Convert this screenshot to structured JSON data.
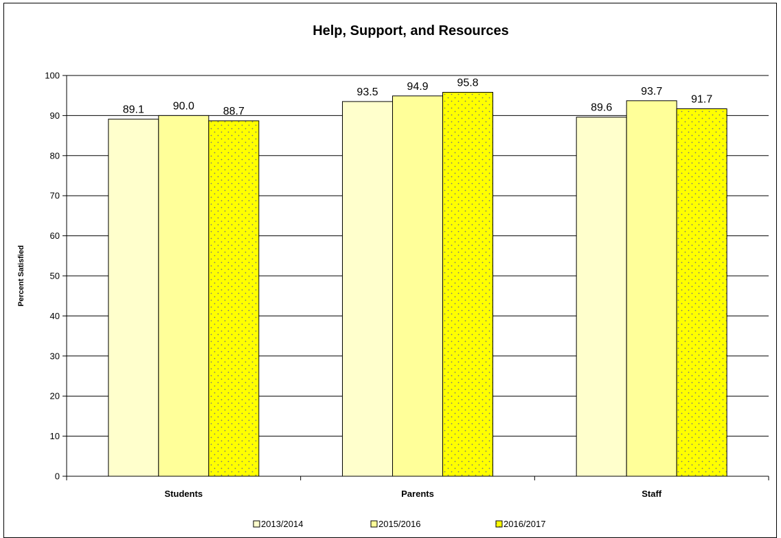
{
  "chart_data": {
    "type": "bar",
    "title": "Help, Support, and Resources",
    "xlabel": "",
    "ylabel": "Percent Satisfied",
    "ylim": [
      0,
      100
    ],
    "yticks": [
      0,
      10,
      20,
      30,
      40,
      50,
      60,
      70,
      80,
      90,
      100
    ],
    "categories": [
      "Students",
      "Parents",
      "Staff"
    ],
    "series": [
      {
        "name": "2013/2014",
        "values": [
          89.1,
          93.5,
          89.6
        ],
        "color": "#FFFFCC",
        "pattern": "none"
      },
      {
        "name": "2015/2016",
        "values": [
          90.0,
          94.9,
          93.7
        ],
        "color": "#FFFF99",
        "pattern": "none"
      },
      {
        "name": "2016/2017",
        "values": [
          88.7,
          95.8,
          91.7
        ],
        "color": "#FFFF00",
        "pattern": "dots"
      }
    ],
    "grid": true,
    "legend_position": "bottom"
  }
}
